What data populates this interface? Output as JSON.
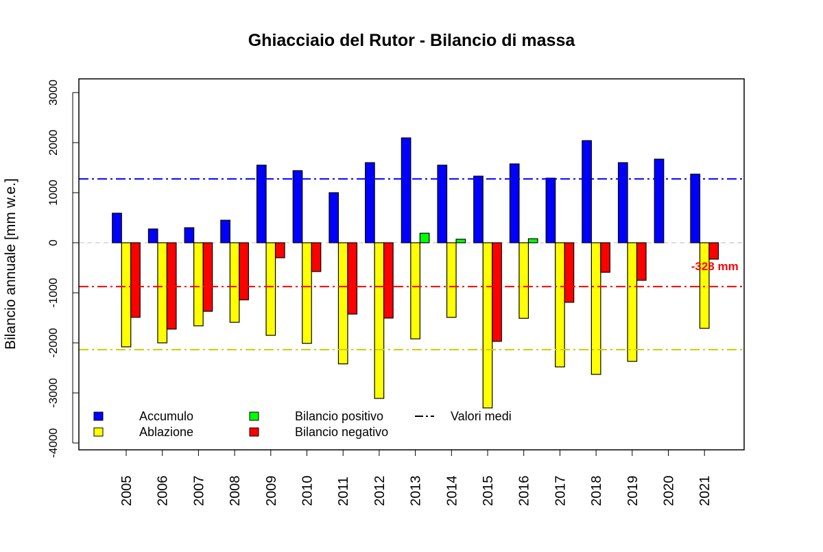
{
  "chart_data": {
    "type": "bar",
    "title": "Ghiacciaio del Rutor - Bilancio di massa",
    "xlabel": "",
    "ylabel": "Bilancio annuale [mm w.e.]",
    "ylim": [
      -4000,
      3000
    ],
    "yticks": [
      3000,
      2000,
      1000,
      0,
      -1000,
      -2000,
      -3000,
      -4000
    ],
    "categories": [
      "2005",
      "2006",
      "2007",
      "2008",
      "2009",
      "2010",
      "2011",
      "2012",
      "2013",
      "2014",
      "2015",
      "2016",
      "2017",
      "2018",
      "2019",
      "2020",
      "2021"
    ],
    "series": [
      {
        "name": "Accumulo",
        "color": "#0000ff",
        "values": [
          590,
          275,
          300,
          450,
          1550,
          1440,
          1000,
          1600,
          2095,
          1550,
          1330,
          1575,
          1290,
          2040,
          1600,
          1670,
          1370
        ]
      },
      {
        "name": "Ablazione",
        "color": "#ffff00",
        "values": [
          -2080,
          -2000,
          -1660,
          -1590,
          -1850,
          -2010,
          -2420,
          -3110,
          -1920,
          -1490,
          -3300,
          -1510,
          -2480,
          -2630,
          -2370,
          null,
          -1710
        ]
      },
      {
        "name": "Bilancio",
        "color_positive": "#00ff00",
        "color_negative": "#ff0000",
        "values": [
          -1490,
          -1725,
          -1370,
          -1140,
          -300,
          -575,
          -1425,
          -1505,
          190,
          70,
          -1970,
          80,
          -1190,
          -590,
          -750,
          null,
          -328
        ]
      }
    ],
    "mean_lines": [
      {
        "series": "Accumulo",
        "value": 1275,
        "color": "#0000ff"
      },
      {
        "series": "Bilancio",
        "value": -875,
        "color": "#ff0000"
      },
      {
        "series": "Ablazione",
        "value": -2135,
        "color": "#cccc00"
      }
    ],
    "annotation": {
      "text": "-328 mm",
      "year": "2021",
      "color": "#ff0000"
    },
    "legend": {
      "placement": "bottom-left",
      "entries": [
        "Accumulo",
        "Ablazione",
        "Bilancio positivo",
        "Bilancio negativo",
        "Valori medi"
      ]
    }
  }
}
